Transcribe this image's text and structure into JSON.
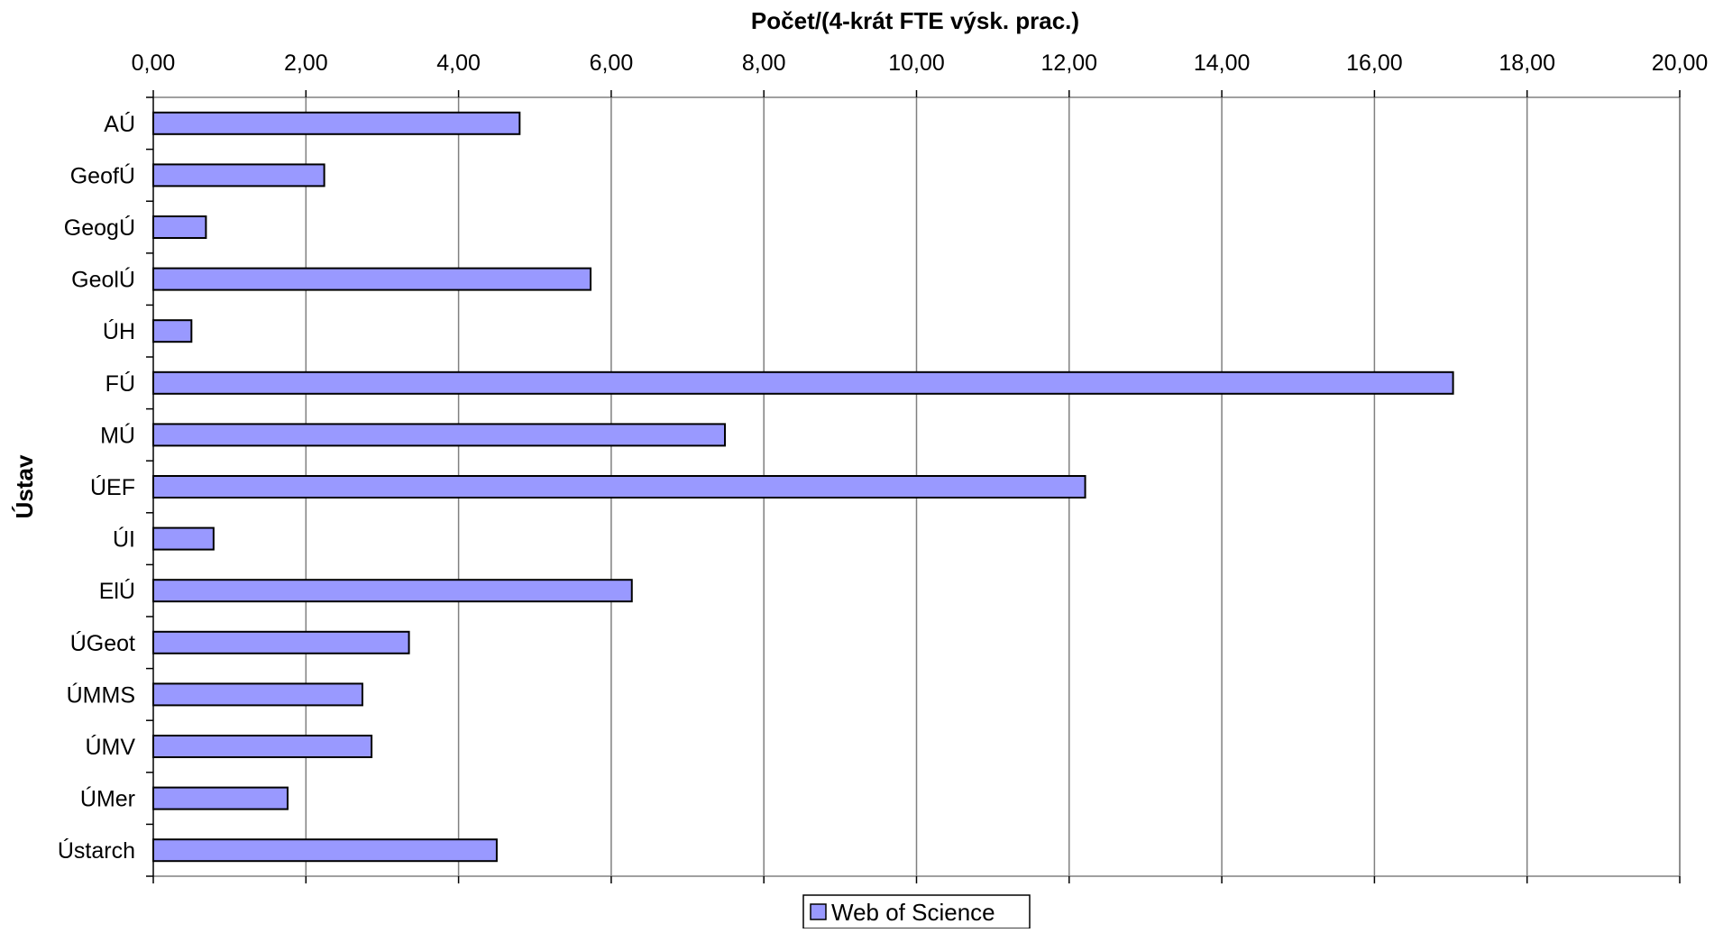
{
  "chart_data": {
    "type": "bar",
    "orientation": "horizontal",
    "title": "",
    "xlabel": "Počet/(4-krát FTE výsk. prac.)",
    "ylabel": "Ústav",
    "xlim": [
      0,
      20
    ],
    "x_ticks": [
      "0,00",
      "2,00",
      "4,00",
      "6,00",
      "8,00",
      "10,00",
      "12,00",
      "14,00",
      "16,00",
      "18,00",
      "20,00"
    ],
    "x_axis_position": "top",
    "grid": true,
    "categories": [
      "AÚ",
      "GeofÚ",
      "GeogÚ",
      "GeolÚ",
      "ÚH",
      "FÚ",
      "MÚ",
      "ÚEF",
      "ÚI",
      "ElÚ",
      "ÚGeot",
      "ÚMMS",
      "ÚMV",
      "ÚMer",
      "Ústarch"
    ],
    "series": [
      {
        "name": "Web of Science",
        "color": "#9999ff",
        "values": [
          4.8,
          2.24,
          0.69,
          5.73,
          0.5,
          17.03,
          7.49,
          12.21,
          0.79,
          6.27,
          3.35,
          2.74,
          2.86,
          1.76,
          4.5
        ]
      }
    ],
    "legend_position": "bottom-center"
  }
}
